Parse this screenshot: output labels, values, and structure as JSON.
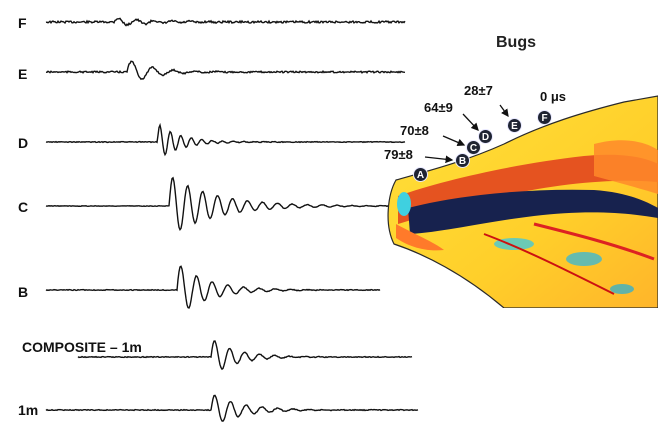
{
  "traces": [
    {
      "label": "F"
    },
    {
      "label": "E"
    },
    {
      "label": "D"
    },
    {
      "label": "C"
    },
    {
      "label": "B"
    },
    {
      "label": "COMPOSITE – 1m"
    },
    {
      "label": "1m"
    }
  ],
  "panel": {
    "title": "Bugs",
    "sites": [
      {
        "label": "A",
        "delay": ""
      },
      {
        "label": "B",
        "delay": "79±8"
      },
      {
        "label": "C",
        "delay": "70±8"
      },
      {
        "label": "D",
        "delay": "64±9"
      },
      {
        "label": "E",
        "delay": "28±7"
      },
      {
        "label": "F",
        "delay": "0 μs"
      }
    ]
  }
}
